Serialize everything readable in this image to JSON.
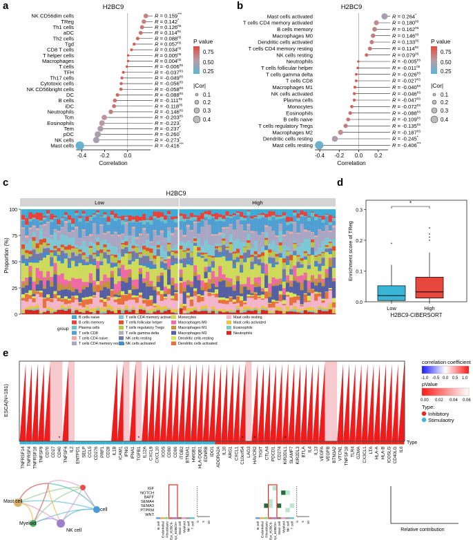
{
  "figure_title": "H2BC9 immune infiltration analysis",
  "panels": {
    "a": "a",
    "b": "b",
    "c": "c",
    "d": "d",
    "e": "e"
  },
  "chart_data": [
    {
      "id": "a",
      "type": "lollipop",
      "title": "H2BC9",
      "xlabel": "Correlation",
      "xlim": [
        -0.45,
        0.2
      ],
      "xticks": [
        -0.4,
        -0.2,
        0.0
      ],
      "xtick_labels": [
        "-0.4",
        "-0.2",
        "0.0"
      ],
      "categories": [
        "NK CD56dim cells",
        "TReg",
        "Th1 cells",
        "aDC",
        "Th2 cells",
        "Tgd",
        "CD8 T cells",
        "T helper cells",
        "Macrophages",
        "T cells",
        "TFH",
        "Th17 cells",
        "Cytotoxic cells",
        "NK CD56bright cells",
        "DC",
        "B cells",
        "iDC",
        "Neutrophils",
        "Tcm",
        "Eosinophils",
        "Tem",
        "pDC",
        "NK cells",
        "Mast cells"
      ],
      "values": [
        0.159,
        0.142,
        0.126,
        0.114,
        0.088,
        0.057,
        0.034,
        0.005,
        0.004,
        -0.006,
        -0.037,
        -0.049,
        -0.056,
        -0.058,
        -0.088,
        -0.111,
        -0.118,
        -0.146,
        -0.203,
        -0.223,
        -0.237,
        -0.26,
        -0.273,
        -0.416
      ],
      "sig": [
        "***",
        "*",
        "ns",
        "ns",
        "ns",
        "ns",
        "ns",
        "ns",
        "ns",
        "ns",
        "ns",
        "ns",
        "ns",
        "ns",
        "ns",
        "ns",
        "ns",
        "ns",
        "ns",
        "*",
        "*",
        "*",
        "*",
        "***"
      ],
      "legend": {
        "color_title": "P value",
        "color_ticks": [
          "0.75",
          "0.50",
          "0.25"
        ],
        "size_title": "|Cor|",
        "size_ticks": [
          "0.1",
          "0.2",
          "0.3",
          "0.4"
        ]
      }
    },
    {
      "id": "b",
      "type": "lollipop",
      "title": "H2BC9",
      "xlabel": "Correlation",
      "xlim": [
        -0.45,
        0.3
      ],
      "xticks": [
        -0.4,
        -0.2,
        0.0,
        0.2
      ],
      "xtick_labels": [
        "-0.4",
        "-0.2",
        "0.0",
        "0.2"
      ],
      "categories": [
        "Mast cells activated",
        "T cells CD4 memory activated",
        "B cells memory",
        "Macrophages M0",
        "Dendritic cells activated",
        "T cells CD4 memory resting",
        "NK cells resting",
        "Neutrophils",
        "T cells follicular helper",
        "T cells gamma delta",
        "T cells CD8",
        "Macrophages M1",
        "NK cells activated",
        "Plasma cells",
        "Monocytes",
        "Eosinophils",
        "B cells naive",
        "T cells regulatory Tregs",
        "Macrophages M2",
        "Dendritic cells resting",
        "Mast cells resting"
      ],
      "values": [
        0.264,
        0.18,
        0.162,
        0.146,
        0.133,
        0.114,
        0.079,
        -0.005,
        -0.011,
        -0.026,
        -0.027,
        -0.04,
        -0.046,
        -0.047,
        -0.072,
        -0.088,
        -0.109,
        -0.135,
        -0.187,
        -0.245,
        -0.406
      ],
      "sig": [
        "*",
        "ns",
        "ns",
        "ns",
        "ns",
        "ns",
        "ns",
        "ns",
        "ns",
        "ns",
        "ns",
        "ns",
        "ns",
        "ns",
        "ns",
        "ns",
        "ns",
        "ns",
        "ns",
        "*",
        "***"
      ],
      "legend": {
        "color_title": "P value",
        "color_ticks": [
          "0.75",
          "0.50",
          "0.25"
        ],
        "size_title": "|Cor|",
        "size_ticks": [
          "0.1",
          "0.2",
          "0.3",
          "0.4"
        ]
      }
    },
    {
      "id": "c",
      "type": "stacked_bar",
      "title": "H2BC9",
      "ylabel": "Proportion (%)",
      "yticks": [
        "0",
        "25",
        "50",
        "75",
        "100"
      ],
      "groups": [
        "Low",
        "High"
      ],
      "n_samples": [
        44,
        44
      ],
      "legend_title": "group",
      "cell_types": [
        "B cells naive",
        "B cells memory",
        "Plasma cells",
        "T cells CD8",
        "T cells CD4 naive",
        "T cells CD4 memory resting",
        "T cells CD4 memory activated",
        "T cells follicular helper",
        "T cells regulatory Tregs",
        "T cells gamma delta",
        "NK cells resting",
        "NK cells activated",
        "Monocytes",
        "Macrophages M0",
        "Macrophages M1",
        "Macrophages M2",
        "Dendritic cells resting",
        "Dendritic cells activated",
        "Mast cells resting",
        "Mast cells activated",
        "Eosinophils",
        "Neutrophils"
      ],
      "colors": [
        "#3aaed8",
        "#e8413c",
        "#6cc1c9",
        "#4f9fd3",
        "#f0a9a0",
        "#a8a6c2",
        "#7ec7d4",
        "#e4502c",
        "#b8c64a",
        "#b2b2b2",
        "#737aa6",
        "#3c8ed0",
        "#ceda5a",
        "#f06aa8",
        "#c4913c",
        "#555fa4",
        "#d4e85a",
        "#e8703c",
        "#f3b5cb",
        "#e9c642",
        "#7cc8c2",
        "#d6281e"
      ]
    },
    {
      "id": "d",
      "type": "boxplot",
      "ylabel": "Enrichment score of TReg",
      "xlabel": "H2BC9-CIBERSORT",
      "categories": [
        "Low",
        "High"
      ],
      "yticks": [
        "0.0",
        "0.1",
        "0.2",
        "0.3"
      ],
      "ylim": [
        0,
        0.33
      ],
      "boxes": [
        {
          "name": "Low",
          "min": 0.0,
          "q1": 0.004,
          "median": 0.02,
          "q3": 0.052,
          "max": 0.12,
          "outliers": [
            0.19
          ],
          "color": "#3ab5d6"
        },
        {
          "name": "High",
          "min": 0.0,
          "q1": 0.012,
          "median": 0.032,
          "q3": 0.08,
          "max": 0.16,
          "outliers": [
            0.22,
            0.24,
            0.21,
            0.2
          ],
          "color": "#e8473e"
        }
      ],
      "significance": "*"
    },
    {
      "id": "e",
      "type": "heatmap",
      "row_label": "ESCA(N=181)",
      "axis_label": "Type",
      "genes": [
        "TNFRSF14",
        "TNFRSF4",
        "TNFRSF18",
        "TNFSF9",
        "CD70",
        "CD27",
        "CD40",
        "TNFSF4",
        "IL2",
        "ENTPD1",
        "SELP",
        "CCL5",
        "CD276",
        "PRF1",
        "CD28",
        "IL1B",
        "ICAM1",
        "IFNG",
        "IFNA1",
        "TGFB1",
        "IL12A",
        "CXCL9",
        "CXCL10",
        "ICOS",
        "CD80",
        "CD86",
        "ITGB2",
        "BTN3A1",
        "HMGB1",
        "HLA-DQB1",
        "EDNRB",
        "IDO1",
        "ADORA2A",
        "IL10",
        "ARG1",
        "CXCL1",
        "C10orf54",
        "LAG3",
        "HAVCR2",
        "TIGIT",
        "CTLA4",
        "PDCD1",
        "CD274",
        "KIR2DL1",
        "SLAMF7",
        "KIR2DL3",
        "BTLA",
        "IL4",
        "IL13",
        "VEGFA",
        "VEGFB",
        "BTN3A2",
        "VTCN1",
        "TNFSF18",
        "TLR4",
        "GZMA",
        "CX3CL1",
        "LTA",
        "HLA-A",
        "HLA-B",
        "ICOSLG",
        "CD40LG",
        "IL6"
      ],
      "gene_types": [
        0,
        0,
        0,
        0,
        0,
        0,
        0,
        0,
        0,
        0,
        0,
        0,
        0,
        0,
        0,
        0,
        0,
        0,
        0,
        0,
        0,
        0,
        0,
        0,
        0,
        0,
        0,
        0,
        0,
        0,
        0,
        0,
        1,
        1,
        1,
        1,
        1,
        1,
        1,
        1,
        1,
        1,
        1,
        1,
        1,
        1,
        1,
        1,
        1,
        1,
        1,
        1,
        1,
        1,
        1,
        1,
        1,
        1,
        1,
        1,
        1,
        1,
        1
      ],
      "star_positions": [
        6,
        19,
        36,
        38,
        43
      ],
      "legend": {
        "title": "correlation coefficient",
        "cor_ticks": [
          "-1.0",
          "-0.5",
          "0.0",
          "0.5",
          "1.0"
        ],
        "p_title": "pValue",
        "p_ticks": [
          "0.00",
          "0.02",
          "0.04",
          "0.06"
        ],
        "type_title": "Type:",
        "type_items": [
          "Inhibitory",
          "Stimulaotry"
        ]
      }
    }
  ],
  "network": {
    "nodes": [
      "Mast cell",
      "Myeloid",
      "NK cell",
      "cell"
    ],
    "pathways": [
      "IGF",
      "NOTCH",
      "BAFF",
      "SEMA4",
      "SEMA3",
      "PTPRM",
      "WNT"
    ],
    "cells": [
      "B cell",
      "Endothelial",
      "Fibroblasts",
      "Epi_H2BC9-",
      "Epi_H2BC9+",
      "Mast cell",
      "Myeloid",
      "NK cell",
      "T cell"
    ],
    "bar_ticks": [
      "0",
      "5",
      "10"
    ],
    "relative_contribution": "Relative contribution"
  }
}
